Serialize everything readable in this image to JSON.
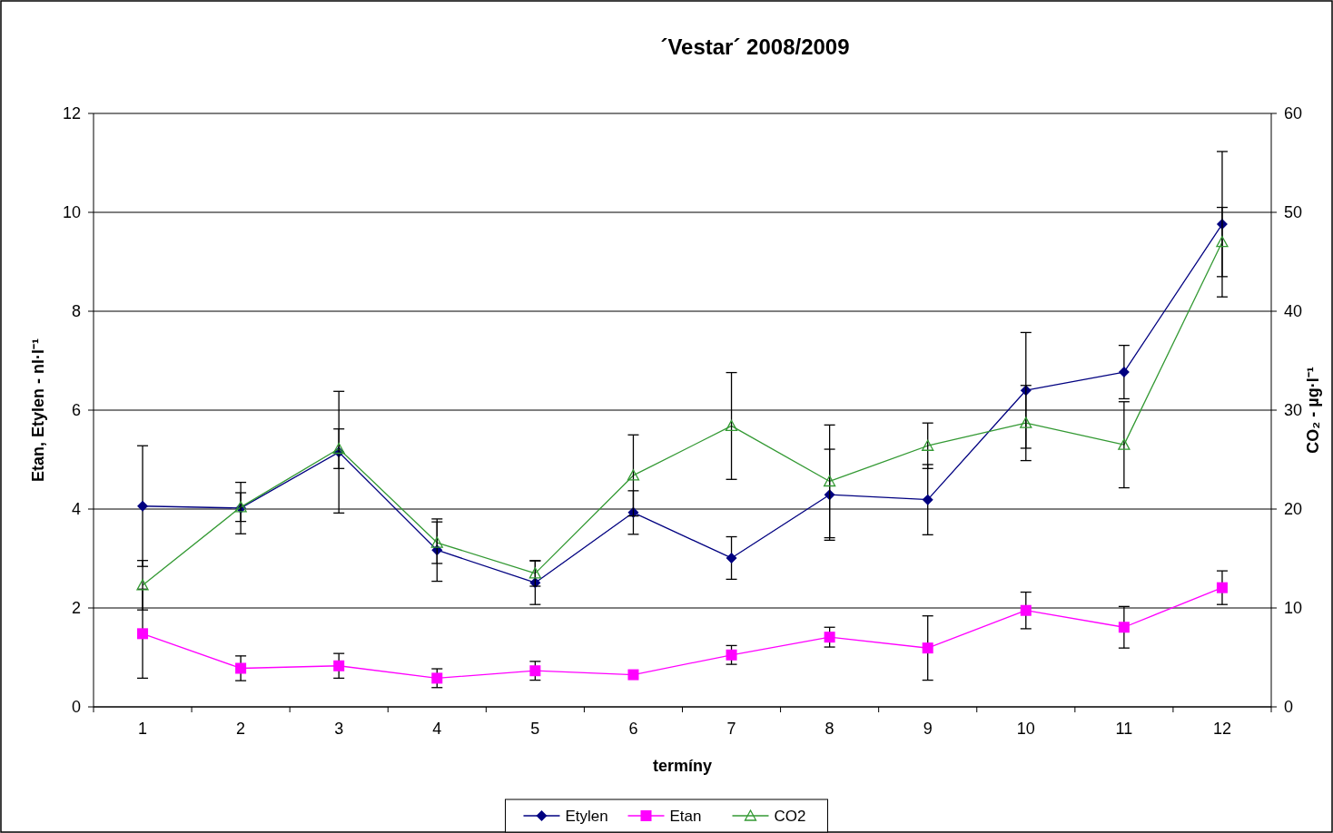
{
  "chart_data": {
    "type": "line",
    "title": "´Vestar´ 2008/2009",
    "xlabel": "termíny",
    "ylabel": "Etan, Etylen - nl·l⁻¹",
    "y2label": "CO₂ - µg·l⁻¹",
    "categories": [
      "1",
      "2",
      "3",
      "4",
      "5",
      "6",
      "7",
      "8",
      "9",
      "10",
      "11",
      "12"
    ],
    "ylim": [
      0,
      12
    ],
    "yticks": [
      0,
      2,
      4,
      6,
      8,
      10,
      12
    ],
    "y2lim": [
      0,
      60
    ],
    "y2ticks": [
      0,
      10,
      20,
      30,
      40,
      50,
      60
    ],
    "grid": "y",
    "legend": "bottom",
    "line_style": "solid",
    "series": [
      {
        "name": "Etylen",
        "color": "#000080",
        "marker": "diamond",
        "values": [
          4.06,
          4.02,
          5.15,
          3.17,
          2.51,
          3.93,
          3.01,
          4.29,
          4.19,
          6.4,
          6.77,
          9.76
        ],
        "errors": [
          1.22,
          0.52,
          1.23,
          0.63,
          0.44,
          0.44,
          0.43,
          0.92,
          0.71,
          1.17,
          0.54,
          1.47
        ]
      },
      {
        "name": "Etan",
        "color": "#ff00ff",
        "marker": "square",
        "values": [
          1.48,
          0.78,
          0.83,
          0.58,
          0.73,
          0.65,
          1.05,
          1.41,
          1.19,
          1.95,
          1.61,
          2.41
        ],
        "errors": [
          0.9,
          0.25,
          0.25,
          0.19,
          0.19,
          null,
          0.19,
          0.2,
          0.65,
          0.37,
          0.42,
          0.34
        ]
      },
      {
        "name": "CO2",
        "color": "#339933",
        "marker": "triangle",
        "axis": "y2",
        "values": [
          12.3,
          20.2,
          26.1,
          16.6,
          13.5,
          23.4,
          28.4,
          22.8,
          26.4,
          28.7,
          26.5,
          47
        ],
        "errors": [
          2.5,
          1.45,
          2,
          2.1,
          1.3,
          4.1,
          5.4,
          5.7,
          2.3,
          3.8,
          4.35,
          3.5
        ]
      }
    ]
  }
}
